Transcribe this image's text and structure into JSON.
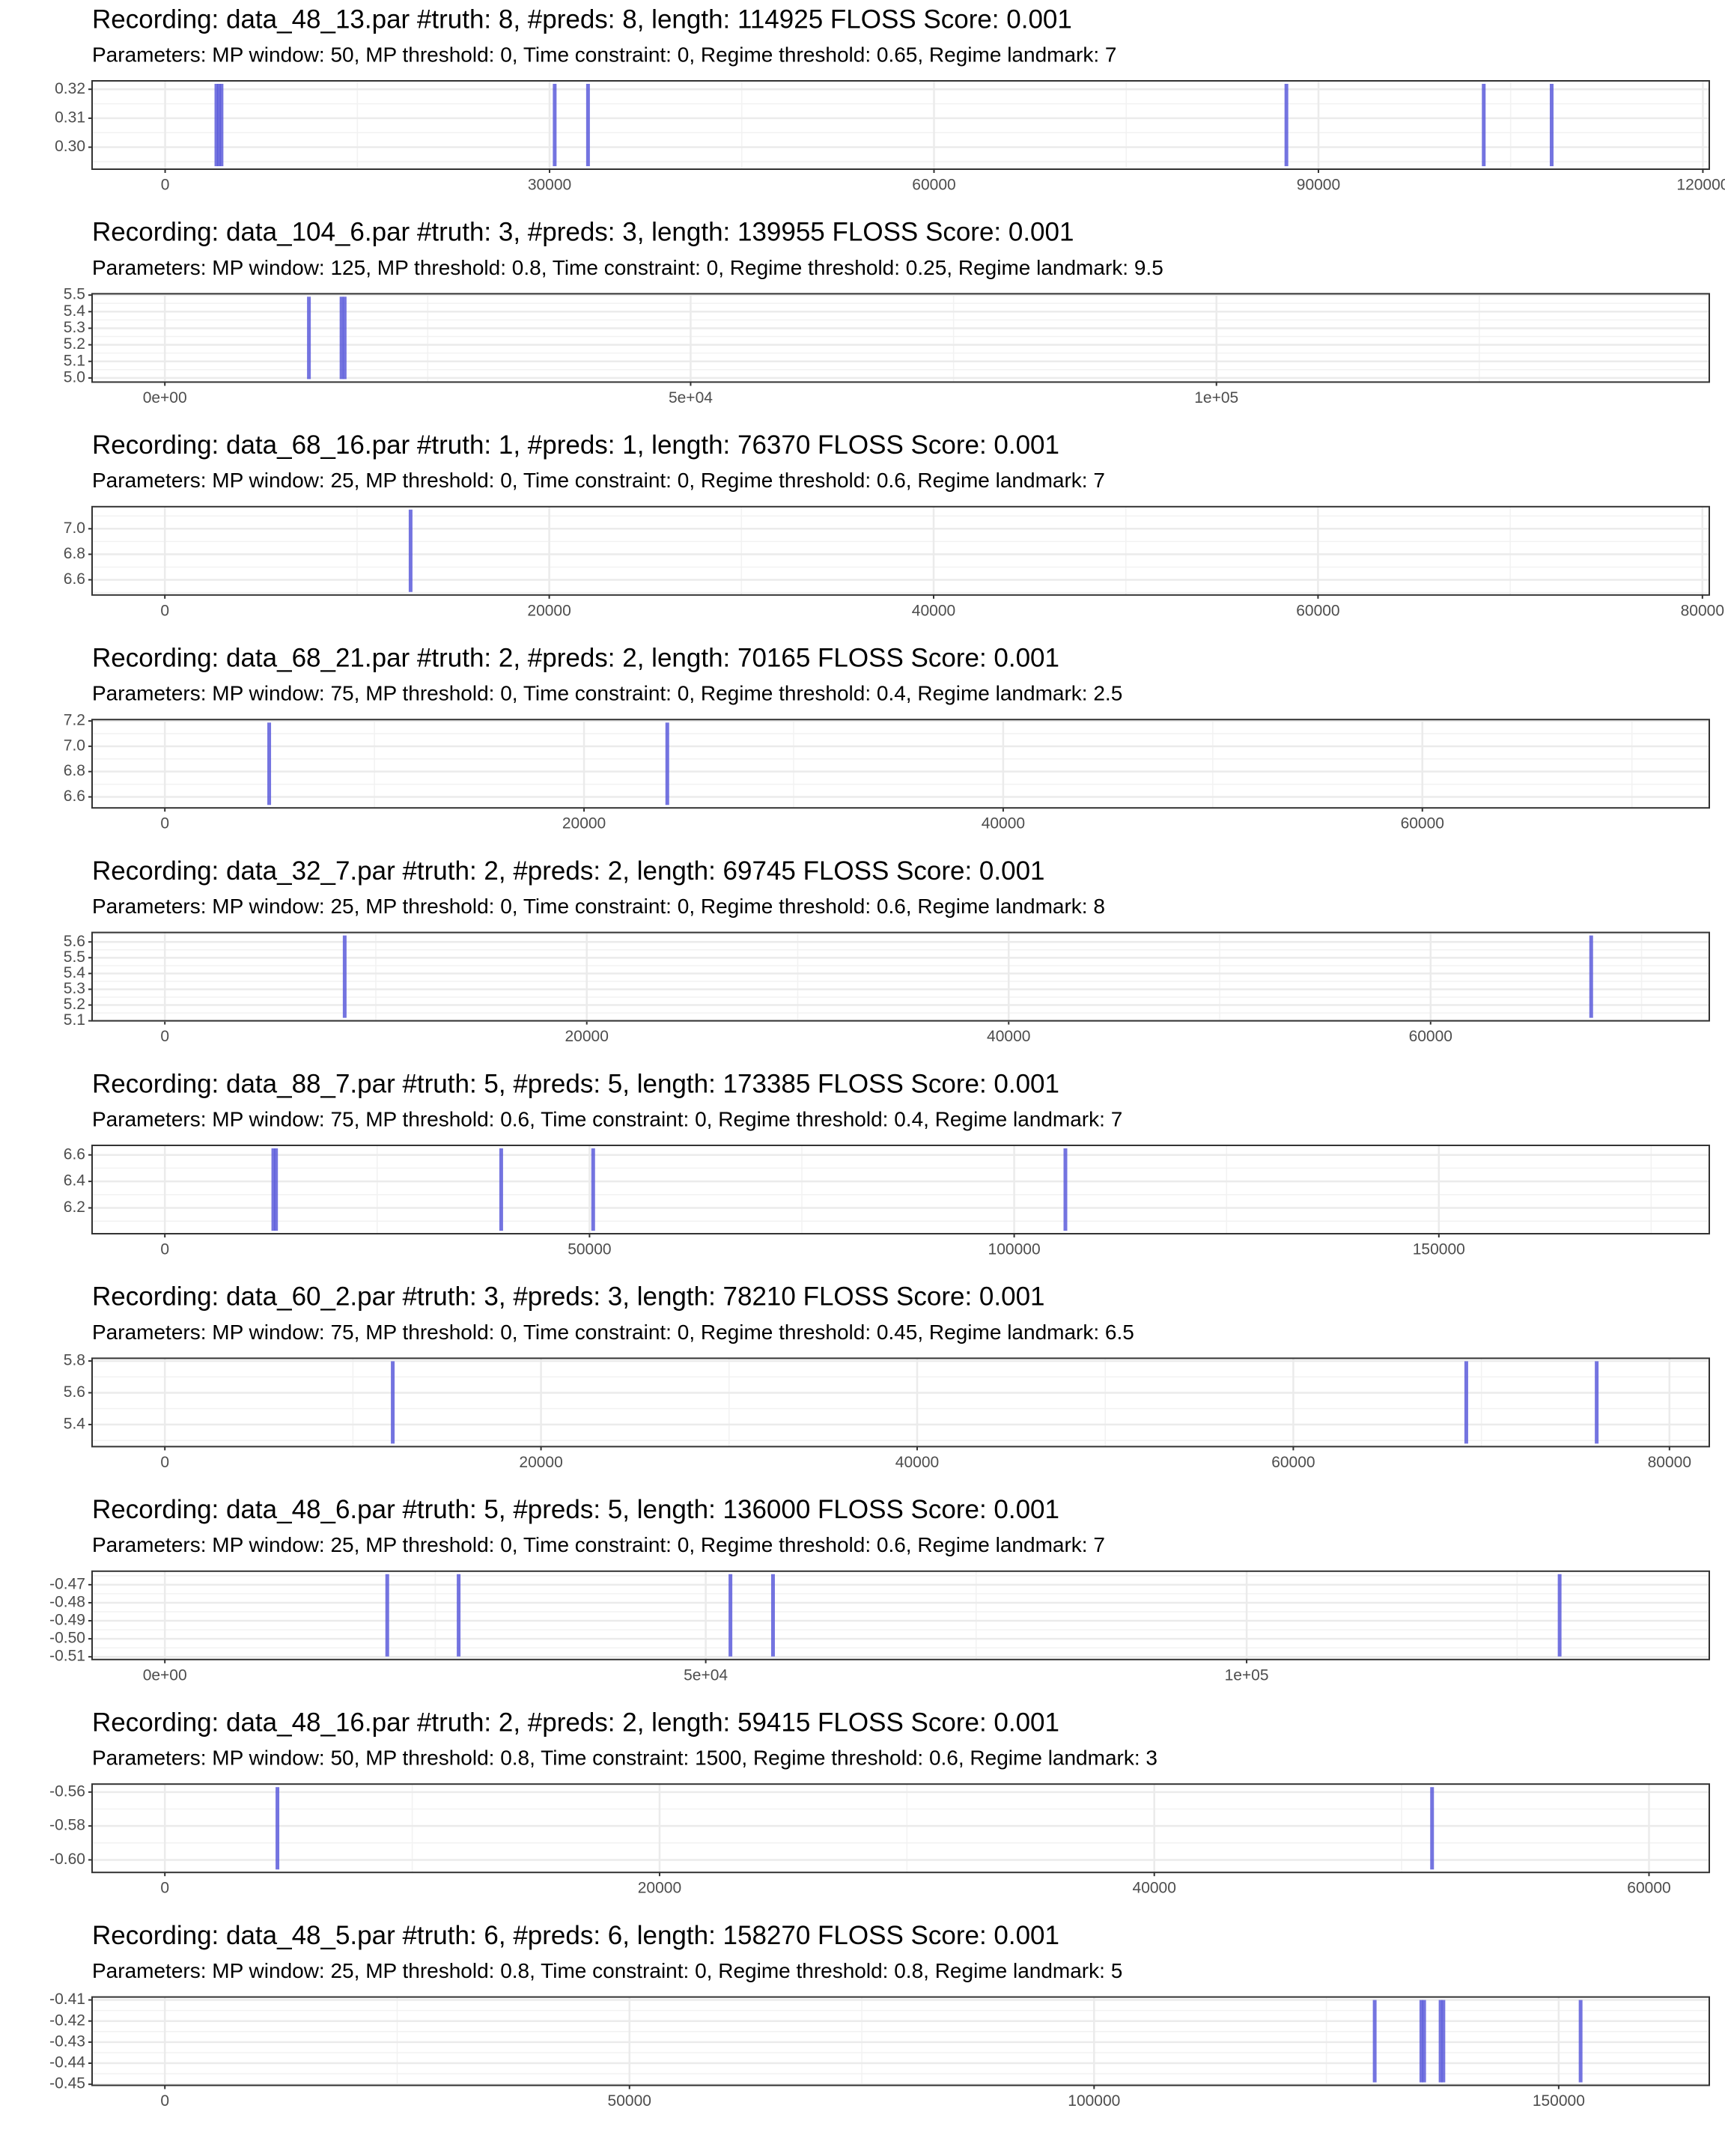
{
  "chart_data": [
    {
      "type": "vline",
      "title": "Recording: data_48_13.par #truth: 8, #preds: 8, length: 114925 FLOSS Score: 0.001",
      "subtitle": "Parameters: MP window: 50, MP threshold: 0, Time constraint: 0, Regime threshold: 0.65, Regime landmark: 7",
      "x": [
        4000,
        4200,
        4400,
        30400,
        33000,
        87500,
        102900,
        108200
      ],
      "color": "#5c5cdb",
      "xlim": [
        -5700,
        120500
      ],
      "xticks": [
        0,
        30000,
        60000,
        90000,
        120000
      ],
      "ylim": [
        0.2924,
        0.3229
      ],
      "yticks": [
        {
          "value": 0.3,
          "label": "0.30"
        },
        0.31,
        0.32
      ],
      "grid": true
    },
    {
      "type": "vline",
      "title": "Recording: data_104_6.par #truth: 3, #preds: 3, length: 139955 FLOSS Score: 0.001",
      "subtitle": "Parameters: MP window: 125, MP threshold: 0.8, Time constraint: 0, Regime threshold: 0.25, Regime landmark: 9.5",
      "x": [
        13700,
        16800,
        17100
      ],
      "color": "#5c5cdb",
      "xlim": [
        -6919,
        146867
      ],
      "xticks": [
        {
          "value": 0,
          "label": "0e+00"
        },
        {
          "value": 50000,
          "label": "5e+04"
        },
        {
          "value": 100000,
          "label": "1e+05"
        }
      ],
      "ylim": [
        4.975,
        5.508
      ],
      "yticks": [
        {
          "value": 5,
          "label": "5.0"
        },
        5.1,
        5.2,
        5.3,
        5.4,
        5.5
      ],
      "grid": true
    },
    {
      "type": "vline",
      "title": "Recording: data_68_16.par #truth: 1, #preds: 1, length: 76370 FLOSS Score: 0.001",
      "subtitle": "Parameters: MP window: 25, MP threshold: 0, Time constraint: 0, Regime threshold: 0.6, Regime landmark: 7",
      "x": [
        12786
      ],
      "color": "#5c5cdb",
      "xlim": [
        -3786,
        80357
      ],
      "xticks": [
        0,
        20000,
        40000,
        60000,
        80000
      ],
      "ylim": [
        6.481,
        7.173
      ],
      "yticks": [
        6.6,
        6.8,
        {
          "value": 7,
          "label": "7.0"
        }
      ],
      "grid": true
    },
    {
      "type": "vline",
      "title": "Recording: data_68_21.par #truth: 2, #preds: 2, length: 70165 FLOSS Score: 0.001",
      "subtitle": "Parameters: MP window: 75, MP threshold: 0, Time constraint: 0, Regime threshold: 0.4, Regime landmark: 2.5",
      "x": [
        4978,
        23973
      ],
      "color": "#5c5cdb",
      "xlim": [
        -3472,
        73690
      ],
      "xticks": [
        0,
        20000,
        40000,
        60000
      ],
      "ylim": [
        6.513,
        7.211
      ],
      "yticks": [
        6.6,
        6.8,
        {
          "value": 7,
          "label": "7.0"
        },
        7.2
      ],
      "grid": true
    },
    {
      "type": "vline",
      "title": "Recording: data_32_7.par #truth: 2, #preds: 2, length: 69745 FLOSS Score: 0.001",
      "subtitle": "Parameters: MP window: 25, MP threshold: 0, Time constraint: 0, Regime threshold: 0.6, Regime landmark: 8",
      "x": [
        8525,
        67612
      ],
      "color": "#5c5cdb",
      "xlim": [
        -3449,
        73210
      ],
      "xticks": [
        0,
        20000,
        40000,
        60000
      ],
      "ylim": [
        5.1,
        5.66
      ],
      "yticks": [
        5.1,
        5.2,
        5.3,
        5.4,
        5.5,
        5.6
      ],
      "grid": true
    },
    {
      "type": "vline",
      "title": "Recording: data_88_7.par #truth: 5, #preds: 5, length: 173385 FLOSS Score: 0.001",
      "subtitle": "Parameters: MP window: 75, MP threshold: 0.6, Time constraint: 0, Regime threshold: 0.4, Regime landmark: 7",
      "x": [
        12770,
        13090,
        39600,
        50430,
        106030
      ],
      "color": "#5c5cdb",
      "xlim": [
        -8567,
        181840
      ],
      "xticks": [
        0,
        50000,
        100000,
        150000
      ],
      "ylim": [
        6.005,
        6.672
      ],
      "yticks": [
        6.2,
        6.4,
        6.6
      ],
      "grid": true
    },
    {
      "type": "vline",
      "title": "Recording: data_60_2.par #truth: 3, #preds: 3, length: 78210 FLOSS Score: 0.001",
      "subtitle": "Parameters: MP window: 75, MP threshold: 0, Time constraint: 0, Regime threshold: 0.45, Regime landmark: 6.5",
      "x": [
        12117,
        69197,
        76131
      ],
      "color": "#5c5cdb",
      "xlim": [
        -3869,
        82117
      ],
      "xticks": [
        0,
        20000,
        40000,
        60000,
        80000
      ],
      "ylim": [
        5.261,
        5.817
      ],
      "yticks": [
        5.4,
        5.6,
        5.8
      ],
      "grid": true
    },
    {
      "type": "vline",
      "title": "Recording: data_48_6.par #truth: 5, #preds: 5, length: 136000 FLOSS Score: 0.001",
      "subtitle": "Parameters: MP window: 25, MP threshold: 0, Time constraint: 0, Regime threshold: 0.6, Regime landmark: 7",
      "x": [
        20558,
        27157,
        52284,
        56218,
        128934
      ],
      "color": "#5c5cdb",
      "xlim": [
        -6726,
        142767
      ],
      "xticks": [
        {
          "value": 0,
          "label": "0e+00"
        },
        {
          "value": 50000,
          "label": "5e+04"
        },
        {
          "value": 100000,
          "label": "1e+05"
        }
      ],
      "ylim": [
        -0.5115,
        -0.4625
      ],
      "yticks": [
        -0.51,
        {
          "value": -0.5,
          "label": "-0.50"
        },
        -0.49,
        -0.48,
        -0.47
      ],
      "grid": true
    },
    {
      "type": "vline",
      "title": "Recording: data_48_16.par #truth: 2, #preds: 2, length: 59415 FLOSS Score: 0.001",
      "subtitle": "Parameters: MP window: 50, MP threshold: 0.8, Time constraint: 1500, Regime threshold: 0.6, Regime landmark: 3",
      "x": [
        4551,
        51230
      ],
      "color": "#5c5cdb",
      "xlim": [
        -2942,
        62437
      ],
      "xticks": [
        0,
        20000,
        40000,
        60000
      ],
      "ylim": [
        -0.6074,
        -0.5553
      ],
      "yticks": [
        {
          "value": -0.6,
          "label": "-0.60"
        },
        -0.58,
        -0.56
      ],
      "grid": true
    },
    {
      "type": "vline",
      "title": "Recording: data_48_5.par #truth: 6, #preds: 6, length: 158270 FLOSS Score: 0.001",
      "subtitle": "Parameters: MP window: 25, MP threshold: 0.8, Time constraint: 0, Regime threshold: 0.8, Regime landmark: 5",
      "x": [
        130200,
        135220,
        135520,
        137290,
        137590,
        152360
      ],
      "color": "#5c5cdb",
      "xlim": [
        -7833,
        166207
      ],
      "xticks": [
        0,
        50000,
        100000,
        150000
      ],
      "ylim": [
        -0.4505,
        -0.4086
      ],
      "yticks": [
        -0.45,
        -0.44,
        -0.43,
        -0.42,
        -0.41
      ],
      "grid": true
    }
  ]
}
